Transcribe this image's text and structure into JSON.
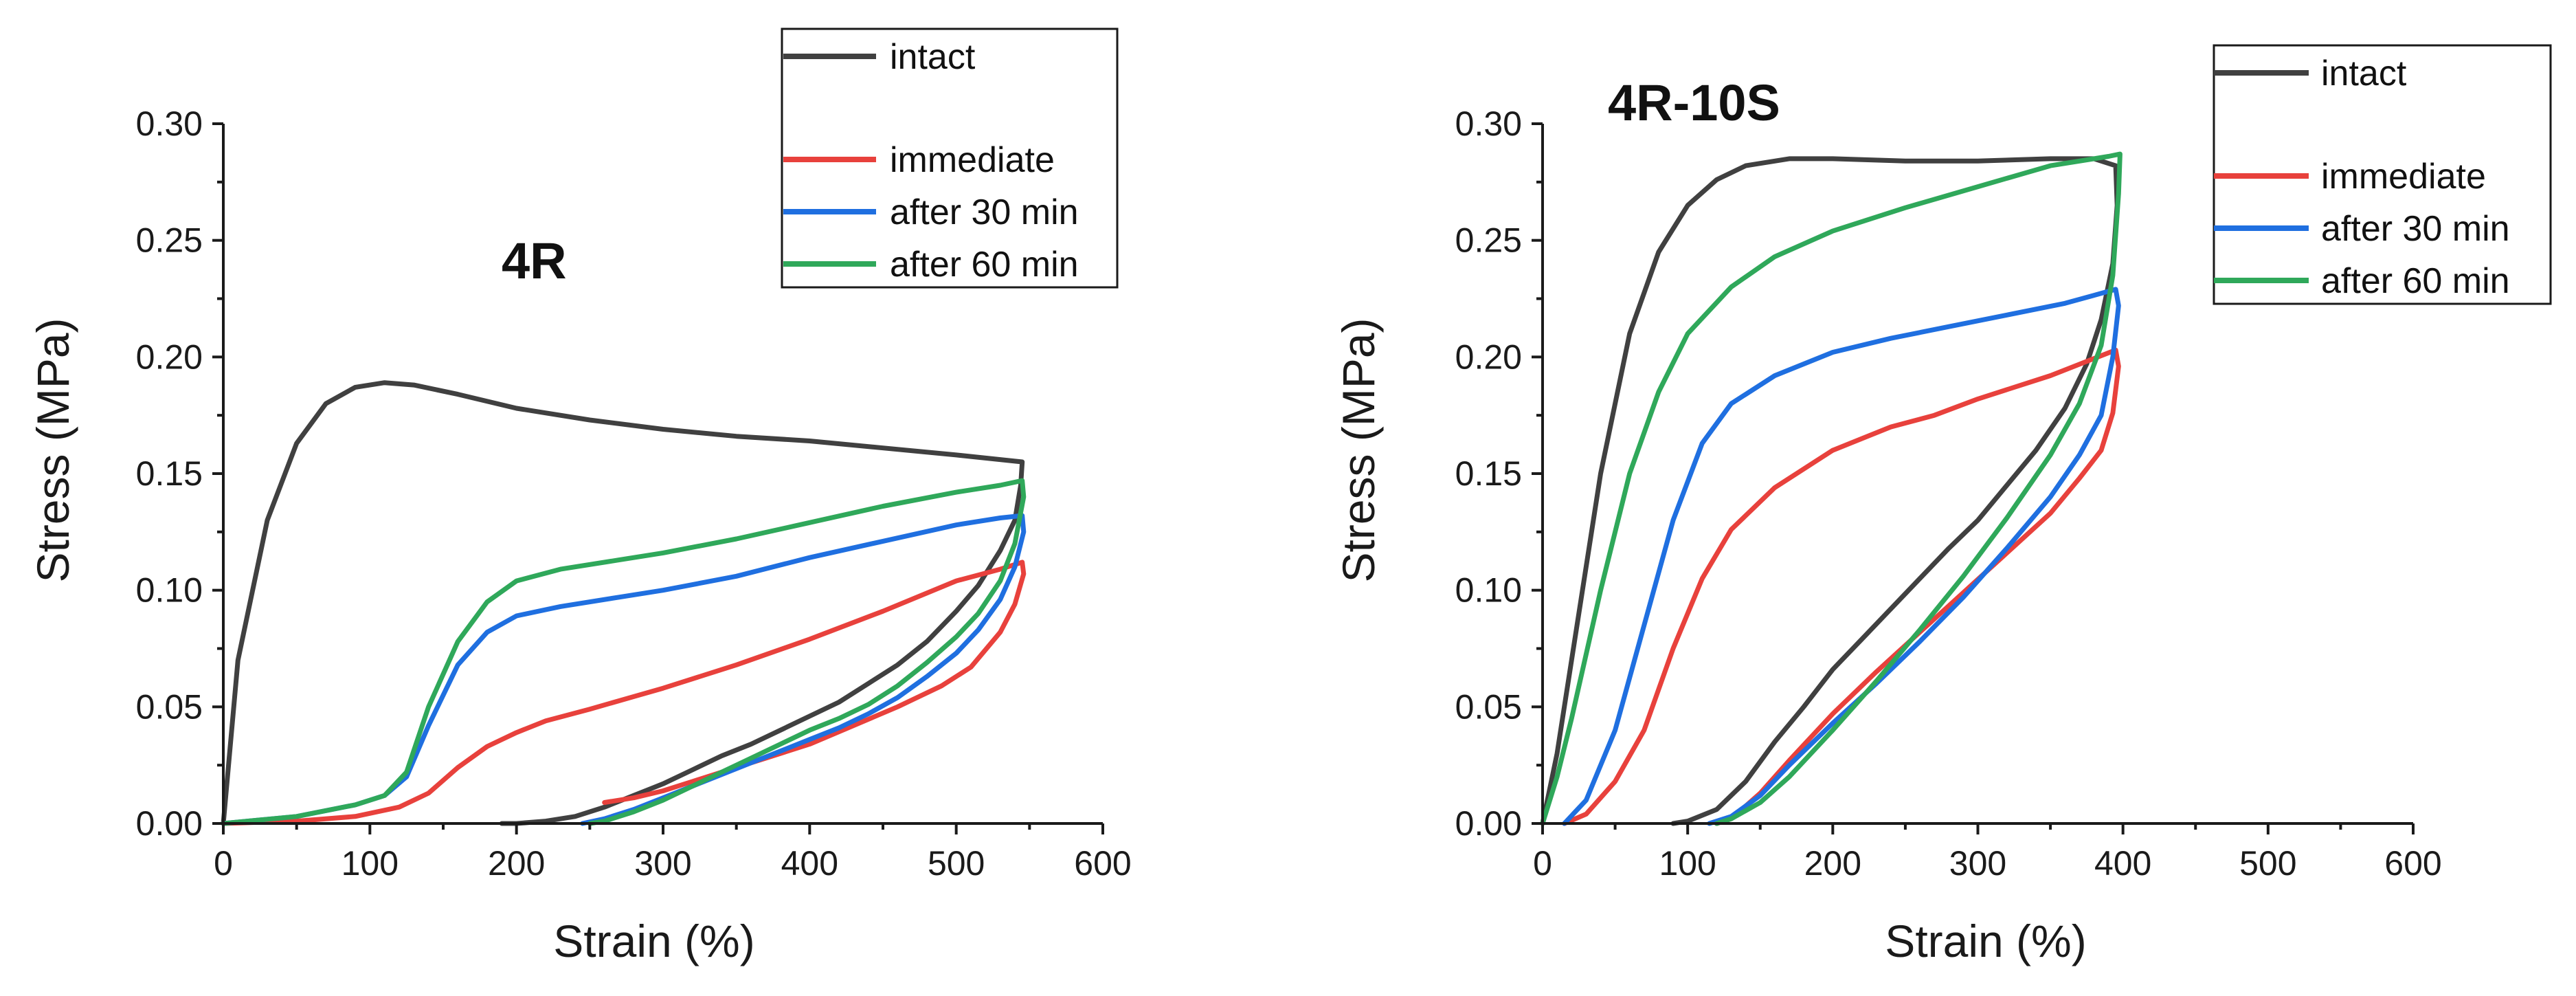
{
  "chart_data": [
    {
      "type": "line",
      "title": "4R",
      "xlabel": "Strain (%)",
      "ylabel": "Stress (MPa)",
      "xlim": [
        0,
        600
      ],
      "ylim": [
        0,
        0.3
      ],
      "xticks": [
        "0",
        "100",
        "200",
        "300",
        "400",
        "500",
        "600"
      ],
      "yticks": [
        "0.00",
        "0.05",
        "0.10",
        "0.15",
        "0.20",
        "0.25",
        "0.30"
      ],
      "legend_position": "top-right",
      "series": [
        {
          "name": "intact",
          "color": "#404040",
          "x": [
            0,
            10,
            30,
            50,
            70,
            90,
            110,
            130,
            160,
            200,
            250,
            300,
            350,
            400,
            450,
            500,
            530,
            545,
            544,
            540,
            530,
            515,
            500,
            480,
            460,
            440,
            420,
            400,
            380,
            360,
            340,
            320,
            300,
            280,
            260,
            240,
            220,
            200,
            190
          ],
          "y": [
            0,
            0.07,
            0.13,
            0.163,
            0.18,
            0.187,
            0.189,
            0.188,
            0.184,
            0.178,
            0.173,
            0.169,
            0.166,
            0.164,
            0.161,
            0.158,
            0.156,
            0.155,
            0.145,
            0.13,
            0.117,
            0.102,
            0.091,
            0.078,
            0.068,
            0.06,
            0.052,
            0.046,
            0.04,
            0.034,
            0.029,
            0.023,
            0.017,
            0.012,
            0.007,
            0.003,
            0.001,
            0.0,
            0.0
          ]
        },
        {
          "name": "immediate",
          "color": "#e8413c",
          "x": [
            0,
            50,
            90,
            120,
            140,
            160,
            180,
            200,
            220,
            250,
            300,
            350,
            400,
            450,
            500,
            530,
            545,
            546,
            540,
            530,
            510,
            490,
            460,
            430,
            400,
            370,
            340,
            320,
            300,
            280,
            260
          ],
          "y": [
            0,
            0.001,
            0.003,
            0.007,
            0.013,
            0.024,
            0.033,
            0.039,
            0.044,
            0.049,
            0.058,
            0.068,
            0.079,
            0.091,
            0.104,
            0.109,
            0.112,
            0.107,
            0.094,
            0.082,
            0.067,
            0.059,
            0.05,
            0.042,
            0.034,
            0.028,
            0.022,
            0.018,
            0.014,
            0.011,
            0.009
          ]
        },
        {
          "name": "after 30 min",
          "color": "#1f6fe0",
          "x": [
            0,
            50,
            90,
            110,
            125,
            140,
            160,
            180,
            200,
            230,
            270,
            300,
            350,
            400,
            450,
            500,
            530,
            545,
            546,
            540,
            530,
            515,
            500,
            480,
            460,
            440,
            420,
            400,
            380,
            360,
            340,
            320,
            300,
            280,
            260,
            245
          ],
          "y": [
            0,
            0.003,
            0.008,
            0.012,
            0.02,
            0.042,
            0.068,
            0.082,
            0.089,
            0.093,
            0.097,
            0.1,
            0.106,
            0.114,
            0.121,
            0.128,
            0.131,
            0.132,
            0.125,
            0.11,
            0.096,
            0.083,
            0.073,
            0.063,
            0.054,
            0.047,
            0.041,
            0.036,
            0.031,
            0.026,
            0.021,
            0.016,
            0.011,
            0.006,
            0.002,
            0.0
          ]
        },
        {
          "name": "after 60 min",
          "color": "#2fa85a",
          "x": [
            0,
            50,
            90,
            110,
            125,
            140,
            160,
            180,
            200,
            230,
            270,
            300,
            350,
            400,
            450,
            500,
            530,
            545,
            546,
            540,
            530,
            515,
            500,
            480,
            460,
            440,
            420,
            400,
            380,
            360,
            340,
            320,
            300,
            280,
            260,
            250
          ],
          "y": [
            0,
            0.003,
            0.008,
            0.012,
            0.022,
            0.05,
            0.078,
            0.095,
            0.104,
            0.109,
            0.113,
            0.116,
            0.122,
            0.129,
            0.136,
            0.142,
            0.145,
            0.147,
            0.14,
            0.12,
            0.104,
            0.09,
            0.08,
            0.069,
            0.059,
            0.051,
            0.045,
            0.04,
            0.034,
            0.028,
            0.022,
            0.016,
            0.01,
            0.005,
            0.001,
            0.0
          ]
        }
      ]
    },
    {
      "type": "line",
      "title": "4R-10S",
      "xlabel": "Strain (%)",
      "ylabel": "Stress (MPa)",
      "xlim": [
        0,
        600
      ],
      "ylim": [
        0,
        0.3
      ],
      "xticks": [
        "0",
        "100",
        "200",
        "300",
        "400",
        "500",
        "600"
      ],
      "yticks": [
        "0.00",
        "0.05",
        "0.10",
        "0.15",
        "0.20",
        "0.25",
        "0.30"
      ],
      "legend_position": "top-right",
      "series": [
        {
          "name": "intact",
          "color": "#404040",
          "x": [
            0,
            10,
            20,
            40,
            60,
            80,
            100,
            120,
            140,
            170,
            200,
            250,
            300,
            350,
            380,
            395,
            396,
            393,
            385,
            375,
            360,
            340,
            320,
            300,
            280,
            260,
            240,
            220,
            200,
            180,
            160,
            140,
            120,
            100,
            90
          ],
          "y": [
            0,
            0.03,
            0.07,
            0.15,
            0.21,
            0.245,
            0.265,
            0.276,
            0.282,
            0.285,
            0.285,
            0.284,
            0.284,
            0.285,
            0.285,
            0.282,
            0.265,
            0.24,
            0.216,
            0.197,
            0.178,
            0.16,
            0.145,
            0.13,
            0.118,
            0.105,
            0.092,
            0.079,
            0.066,
            0.05,
            0.035,
            0.018,
            0.006,
            0.001,
            0.0
          ]
        },
        {
          "name": "immediate",
          "color": "#e8413c",
          "x": [
            15,
            30,
            50,
            70,
            90,
            110,
            130,
            160,
            200,
            240,
            270,
            300,
            350,
            395,
            397,
            393,
            385,
            370,
            350,
            320,
            290,
            260,
            230,
            200,
            170,
            150,
            130,
            120
          ],
          "y": [
            0,
            0.004,
            0.018,
            0.04,
            0.075,
            0.105,
            0.126,
            0.144,
            0.16,
            0.17,
            0.175,
            0.182,
            0.192,
            0.203,
            0.196,
            0.176,
            0.16,
            0.148,
            0.133,
            0.116,
            0.099,
            0.082,
            0.065,
            0.047,
            0.027,
            0.013,
            0.002,
            0.0
          ]
        },
        {
          "name": "after 30 min",
          "color": "#1f6fe0",
          "x": [
            15,
            30,
            50,
            70,
            90,
            110,
            130,
            160,
            200,
            240,
            280,
            320,
            360,
            395,
            397,
            393,
            385,
            370,
            350,
            320,
            290,
            260,
            230,
            200,
            170,
            150,
            130,
            115
          ],
          "y": [
            0,
            0.01,
            0.04,
            0.085,
            0.13,
            0.163,
            0.18,
            0.192,
            0.202,
            0.208,
            0.213,
            0.218,
            0.223,
            0.229,
            0.222,
            0.2,
            0.175,
            0.158,
            0.14,
            0.118,
            0.097,
            0.078,
            0.06,
            0.043,
            0.025,
            0.012,
            0.003,
            0.0
          ]
        },
        {
          "name": "after 60 min",
          "color": "#2fa85a",
          "x": [
            0,
            10,
            20,
            40,
            60,
            80,
            100,
            130,
            160,
            200,
            250,
            300,
            350,
            390,
            398,
            397,
            393,
            385,
            370,
            350,
            320,
            290,
            260,
            230,
            200,
            170,
            150,
            130,
            120
          ],
          "y": [
            0,
            0.02,
            0.045,
            0.1,
            0.15,
            0.185,
            0.21,
            0.23,
            0.243,
            0.254,
            0.264,
            0.273,
            0.282,
            0.286,
            0.287,
            0.27,
            0.235,
            0.205,
            0.18,
            0.158,
            0.131,
            0.106,
            0.083,
            0.061,
            0.04,
            0.02,
            0.009,
            0.002,
            0.0
          ]
        }
      ]
    }
  ]
}
